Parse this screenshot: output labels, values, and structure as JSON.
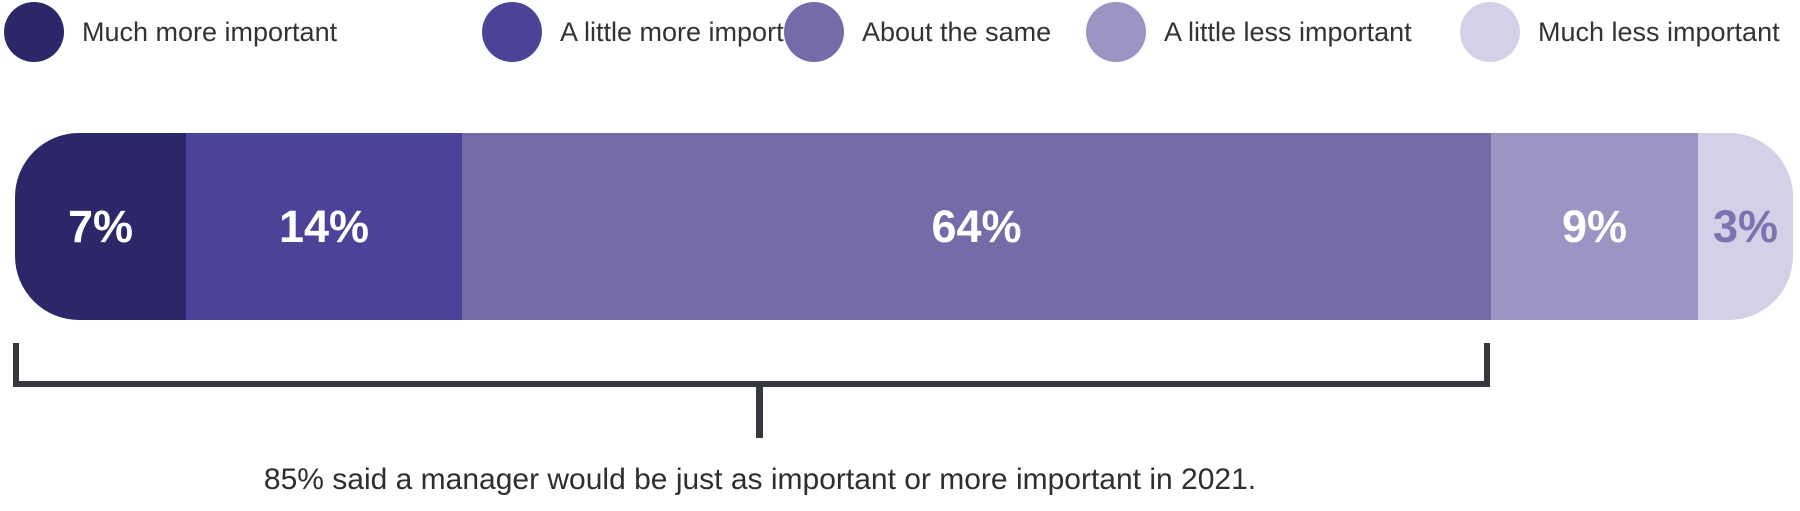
{
  "legend": {
    "items": [
      {
        "label": "Much more important",
        "color": "#2b2768"
      },
      {
        "label": "A little more important",
        "color": "#4b4398"
      },
      {
        "label": "About the same",
        "color": "#746ca9"
      },
      {
        "label": "A little less important",
        "color": "#9c95c4"
      },
      {
        "label": "Much less important",
        "color": "#d3d0e8"
      }
    ]
  },
  "bar": {
    "segments": [
      {
        "label": "7%",
        "value": 7,
        "color": "#2b2768",
        "label_color": "#ffffff"
      },
      {
        "label": "14%",
        "value": 14,
        "color": "#4b4398",
        "label_color": "#ffffff"
      },
      {
        "label": "64%",
        "value": 64,
        "color": "#746ca9",
        "label_color": "#ffffff"
      },
      {
        "label": "9%",
        "value": 9,
        "color": "#9c95c4",
        "label_color": "#ffffff"
      },
      {
        "label": "3%",
        "value": 3,
        "color": "#d3d0e8",
        "label_color": "#7b74ae"
      }
    ]
  },
  "annotation": {
    "text": "85% said a manager would be just as important or more important in 2021.",
    "bracket_color": "#35383c"
  },
  "chart_data": {
    "type": "bar",
    "subtype": "horizontal-stacked",
    "categories": [
      "Much more important",
      "A little more important",
      "About the same",
      "A little less important",
      "Much less important"
    ],
    "values": [
      7,
      14,
      64,
      9,
      3
    ],
    "unit": "%",
    "colors": [
      "#2b2768",
      "#4b4398",
      "#746ca9",
      "#9c95c4",
      "#d3d0e8"
    ],
    "legend_position": "top",
    "data_labels": [
      "7%",
      "14%",
      "64%",
      "9%",
      "3%"
    ],
    "annotation": {
      "text": "85% said a manager would be just as important or more important in 2021.",
      "span_categories": [
        "Much more important",
        "A little more important",
        "About the same"
      ],
      "span_total_percent": 85
    }
  }
}
